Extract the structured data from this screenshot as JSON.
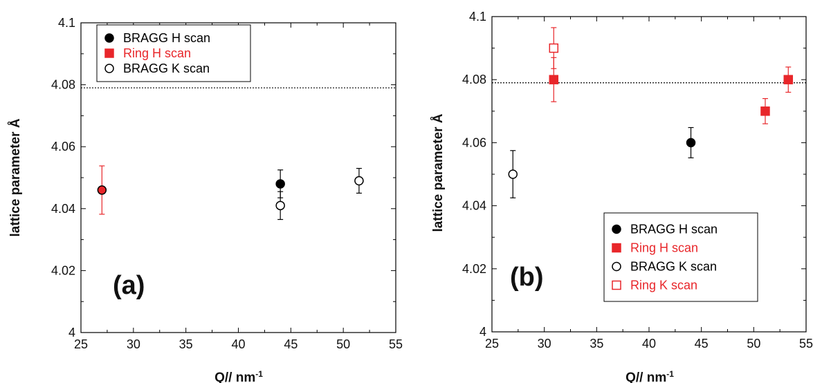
{
  "chart_data": [
    {
      "type": "scatter",
      "panel_label": "(a)",
      "xlabel_main": "Q//",
      "xlabel_unit": "nm",
      "xlabel_sup": "-1",
      "ylabel": "lattice parameter Å",
      "xlim": [
        25,
        55
      ],
      "ylim": [
        4.0,
        4.1
      ],
      "xticks": [
        "25",
        "30",
        "35",
        "40",
        "45",
        "50",
        "55"
      ],
      "yticks": [
        "4",
        "4.02",
        "4.04",
        "4.06",
        "4.08",
        "4.1"
      ],
      "reference_line_y": 4.079,
      "legend_position": "top-left",
      "series": [
        {
          "name": "BRAGG H scan",
          "marker": "circle",
          "fill": "#000000",
          "stroke": "#000000",
          "color": "#000000",
          "points": [
            {
              "x": 44.0,
              "y": 4.048,
              "err": 0.0045
            }
          ]
        },
        {
          "name": "Ring H scan",
          "marker": "square",
          "fill": "#e8262a",
          "stroke": "#e8262a",
          "color": "#e8262a",
          "points": [
            {
              "x": 27.0,
              "y": 4.046,
              "err": 0.0078,
              "marker_override": "circle",
              "outline": "#000000"
            }
          ]
        },
        {
          "name": "BRAGG K scan",
          "marker": "circle",
          "fill": "#ffffff",
          "stroke": "#000000",
          "color": "#000000",
          "points": [
            {
              "x": 44.0,
              "y": 4.041,
              "err": 0.0045
            },
            {
              "x": 51.5,
              "y": 4.049,
              "err": 0.004
            }
          ]
        }
      ]
    },
    {
      "type": "scatter",
      "panel_label": "(b)",
      "xlabel_main": "Q//",
      "xlabel_unit": "nm",
      "xlabel_sup": "-1",
      "ylabel": "lattice parameter Å",
      "xlim": [
        25,
        55
      ],
      "ylim": [
        4.0,
        4.1
      ],
      "xticks": [
        "25",
        "30",
        "35",
        "40",
        "45",
        "50",
        "55"
      ],
      "yticks": [
        "4",
        "4.02",
        "4.04",
        "4.06",
        "4.08",
        "4.1"
      ],
      "reference_line_y": 4.079,
      "legend_position": "bottom-right",
      "series": [
        {
          "name": "BRAGG H scan",
          "marker": "circle",
          "fill": "#000000",
          "stroke": "#000000",
          "color": "#000000",
          "points": [
            {
              "x": 44.0,
              "y": 4.06,
              "err": 0.0048
            }
          ]
        },
        {
          "name": "Ring  H scan",
          "marker": "square",
          "fill": "#e8262a",
          "stroke": "#e8262a",
          "color": "#e8262a",
          "points": [
            {
              "x": 30.9,
              "y": 4.08,
              "err": 0.007
            },
            {
              "x": 51.1,
              "y": 4.07,
              "err": 0.004
            },
            {
              "x": 53.3,
              "y": 4.08,
              "err": 0.004
            }
          ]
        },
        {
          "name": "BRAGG  K scan",
          "marker": "circle",
          "fill": "#ffffff",
          "stroke": "#000000",
          "color": "#000000",
          "points": [
            {
              "x": 27.0,
              "y": 4.05,
              "err": 0.0075
            }
          ]
        },
        {
          "name": "Ring  K scan",
          "marker": "square",
          "fill": "#ffffff",
          "stroke": "#e8262a",
          "color": "#e8262a",
          "points": [
            {
              "x": 30.9,
              "y": 4.09,
              "err": 0.0065
            }
          ]
        }
      ]
    }
  ]
}
